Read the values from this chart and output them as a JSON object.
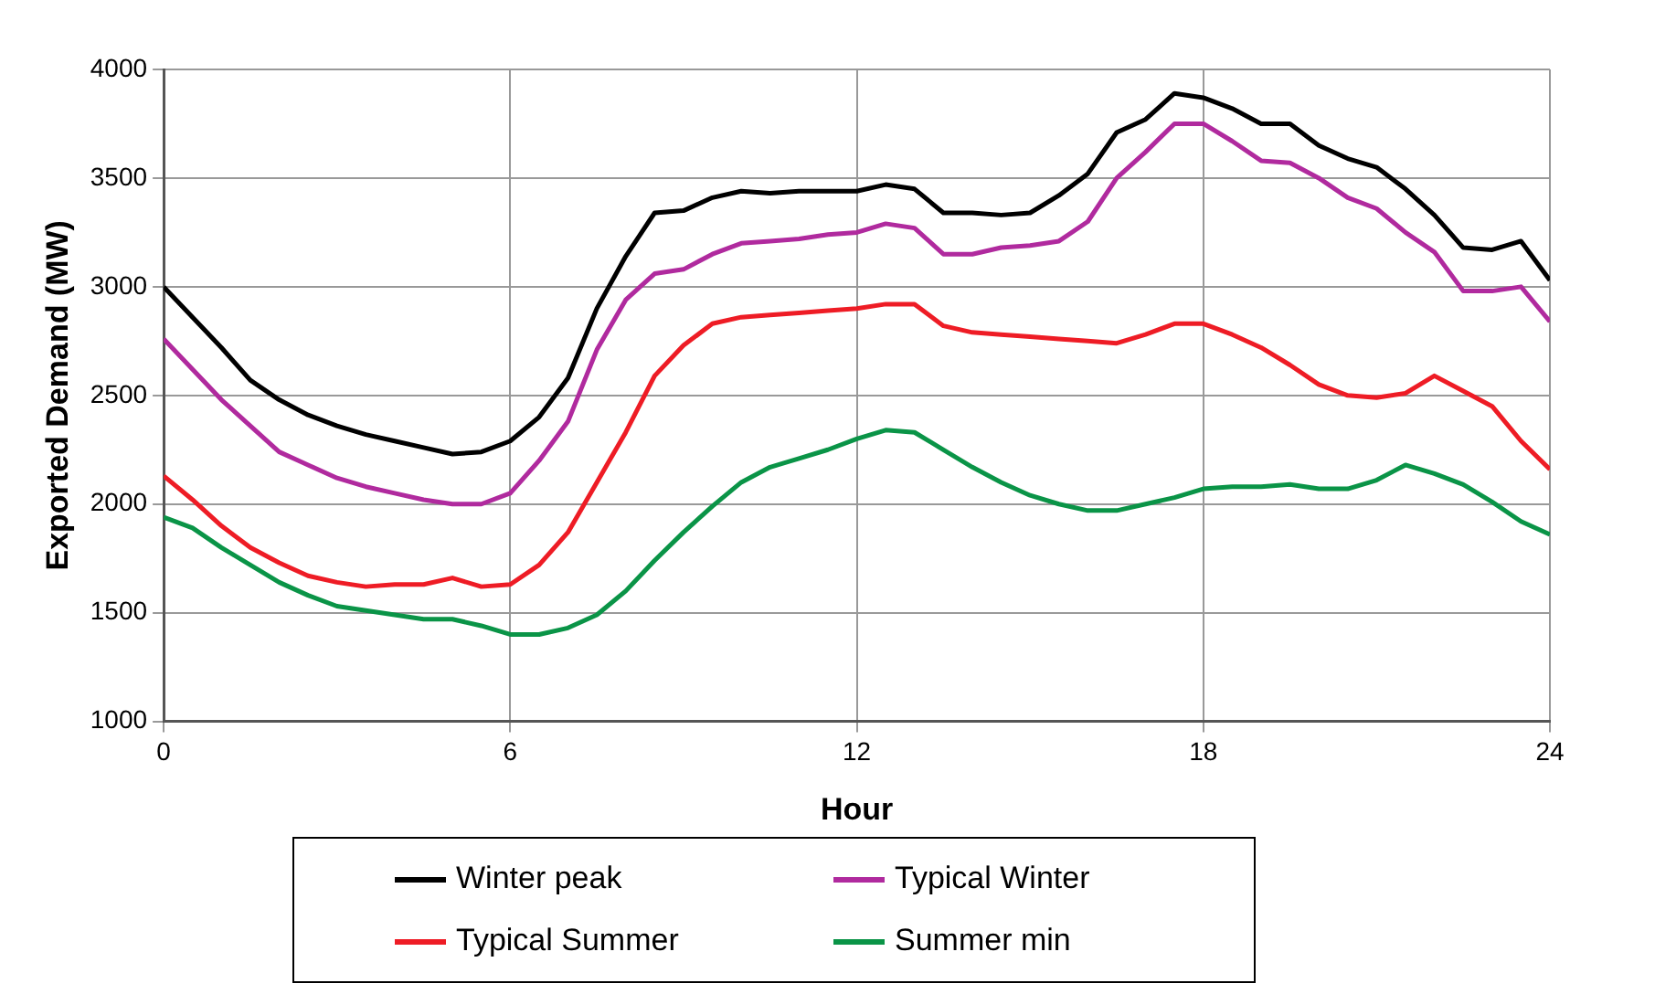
{
  "chart_data": {
    "type": "line",
    "xlabel": "Hour",
    "ylabel": "Exported Demand (MW)",
    "x": [
      0,
      0.5,
      1,
      1.5,
      2,
      2.5,
      3,
      3.5,
      4,
      4.5,
      5,
      5.5,
      6,
      6.5,
      7,
      7.5,
      8,
      8.5,
      9,
      9.5,
      10,
      10.5,
      11,
      11.5,
      12,
      12.5,
      13,
      13.5,
      14,
      14.5,
      15,
      15.5,
      16,
      16.5,
      17,
      17.5,
      18,
      18.5,
      19,
      19.5,
      20,
      20.5,
      21,
      21.5,
      22,
      22.5,
      23,
      23.5,
      24
    ],
    "series": [
      {
        "name": "Winter peak",
        "color": "#000000",
        "values": [
          3000,
          2860,
          2720,
          2570,
          2480,
          2410,
          2360,
          2320,
          2290,
          2260,
          2230,
          2240,
          2290,
          2400,
          2580,
          2900,
          3140,
          3340,
          3350,
          3410,
          3440,
          3430,
          3440,
          3440,
          3440,
          3470,
          3450,
          3340,
          3340,
          3330,
          3340,
          3420,
          3520,
          3710,
          3770,
          3890,
          3870,
          3820,
          3750,
          3750,
          3650,
          3590,
          3550,
          3450,
          3330,
          3180,
          3170,
          3210,
          3030
        ]
      },
      {
        "name": "Typical Winter",
        "color": "#b02a9e",
        "values": [
          2760,
          2620,
          2480,
          2360,
          2240,
          2180,
          2120,
          2080,
          2050,
          2020,
          2000,
          2000,
          2050,
          2200,
          2380,
          2710,
          2940,
          3060,
          3080,
          3150,
          3200,
          3210,
          3220,
          3240,
          3250,
          3290,
          3270,
          3150,
          3150,
          3180,
          3190,
          3210,
          3300,
          3500,
          3620,
          3750,
          3750,
          3670,
          3580,
          3570,
          3500,
          3410,
          3360,
          3250,
          3160,
          2980,
          2980,
          3000,
          2840
        ]
      },
      {
        "name": "Typical Summer",
        "color": "#ee1c25",
        "values": [
          2130,
          2020,
          1900,
          1800,
          1730,
          1670,
          1640,
          1620,
          1630,
          1630,
          1660,
          1620,
          1630,
          1720,
          1870,
          2100,
          2330,
          2590,
          2730,
          2830,
          2860,
          2870,
          2880,
          2890,
          2900,
          2920,
          2920,
          2820,
          2790,
          2780,
          2770,
          2760,
          2750,
          2740,
          2780,
          2830,
          2830,
          2780,
          2720,
          2640,
          2550,
          2500,
          2490,
          2510,
          2590,
          2520,
          2450,
          2290,
          2160
        ]
      },
      {
        "name": "Summer min",
        "color": "#0a9447",
        "values": [
          1940,
          1890,
          1800,
          1720,
          1640,
          1580,
          1530,
          1510,
          1490,
          1470,
          1470,
          1440,
          1400,
          1400,
          1430,
          1490,
          1600,
          1740,
          1870,
          1990,
          2100,
          2170,
          2210,
          2250,
          2300,
          2340,
          2330,
          2250,
          2170,
          2100,
          2040,
          2000,
          1970,
          1970,
          2000,
          2030,
          2070,
          2080,
          2080,
          2090,
          2070,
          2070,
          2110,
          2180,
          2140,
          2090,
          2010,
          1920,
          1860
        ]
      }
    ],
    "xlim": [
      0,
      24
    ],
    "xticks": [
      0,
      6,
      12,
      18,
      24
    ],
    "ylim": [
      1000,
      4000
    ],
    "yticks": [
      1000,
      1500,
      2000,
      2500,
      3000,
      3500,
      4000
    ],
    "grid": true,
    "legend": "bottom",
    "marker": "none",
    "line_style": "solid"
  }
}
